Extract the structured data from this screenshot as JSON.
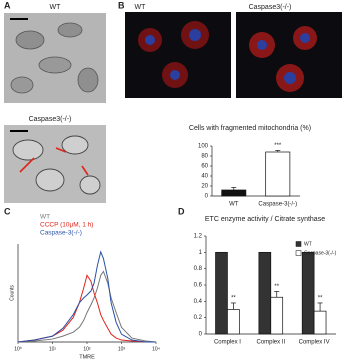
{
  "panels": {
    "A": {
      "letter": "A",
      "labels": [
        "WT",
        "Caspase3(-/-)"
      ]
    },
    "B": {
      "letter": "B",
      "labels": [
        "WT",
        "Caspase3(-/-)"
      ]
    },
    "C": {
      "letter": "C"
    },
    "D": {
      "letter": "D"
    }
  },
  "chart_data": [
    {
      "type": "bar",
      "title": "Cells with fragmented mitochondria (%)",
      "categories": [
        "WT",
        "Caspase-3(-/-)"
      ],
      "values": [
        12,
        88
      ],
      "errors": [
        5,
        3
      ],
      "colors": [
        "#111111",
        "#ffffff"
      ],
      "significance": [
        null,
        "***"
      ],
      "ylim": [
        0,
        100
      ],
      "yticks": [
        0,
        20,
        40,
        60,
        80,
        100
      ]
    },
    {
      "type": "line",
      "x_label": "TMRE",
      "y_label": "Counts",
      "xscale": "log",
      "x": [
        1,
        3,
        10,
        20,
        40,
        60,
        80,
        100,
        130,
        160,
        200,
        250,
        300,
        400,
        500,
        700,
        1000,
        2000,
        5000,
        10000
      ],
      "xlim": [
        1,
        10000
      ],
      "xticks": [
        {
          "value": 1,
          "label": "10⁰"
        },
        {
          "value": 10,
          "label": "10¹"
        },
        {
          "value": 100,
          "label": "10²"
        },
        {
          "value": 1000,
          "label": "10³"
        },
        {
          "value": 10000,
          "label": "10⁴"
        }
      ],
      "ylim": [
        0,
        100
      ],
      "series": [
        {
          "name": "WT",
          "color": "#777777",
          "values": [
            0,
            1,
            3,
            6,
            10,
            15,
            22,
            30,
            38,
            45,
            55,
            68,
            72,
            60,
            45,
            30,
            15,
            4,
            1,
            0
          ]
        },
        {
          "name": "CCCP (10μM, 1 h)",
          "color": "#e0241b",
          "values": [
            0,
            2,
            6,
            12,
            25,
            40,
            55,
            68,
            62,
            50,
            40,
            28,
            22,
            14,
            8,
            4,
            2,
            1,
            0,
            0
          ]
        },
        {
          "name": "Caspase-3(-/-)",
          "color": "#2a4fa8",
          "values": [
            0,
            2,
            6,
            14,
            28,
            40,
            45,
            48,
            52,
            60,
            78,
            92,
            85,
            65,
            40,
            20,
            8,
            2,
            0,
            0
          ]
        }
      ]
    },
    {
      "type": "bar",
      "title": "ETC enzyme activity / Citrate synthase",
      "categories": [
        "Complex I",
        "Complex II",
        "Complex IV"
      ],
      "legend": "top-right",
      "ylim": [
        0,
        1.2
      ],
      "yticks": [
        0,
        0.2,
        0.4,
        0.6,
        0.8,
        1,
        1.2
      ],
      "series": [
        {
          "name": "WT",
          "color": "#333333",
          "values": [
            1,
            1,
            1
          ]
        },
        {
          "name": "Caspase-3(-/-)",
          "color": "#ffffff",
          "values": [
            0.3,
            0.45,
            0.28
          ],
          "errors": [
            0.08,
            0.07,
            0.1
          ],
          "significance": [
            "**",
            "**",
            "**"
          ]
        }
      ]
    }
  ]
}
